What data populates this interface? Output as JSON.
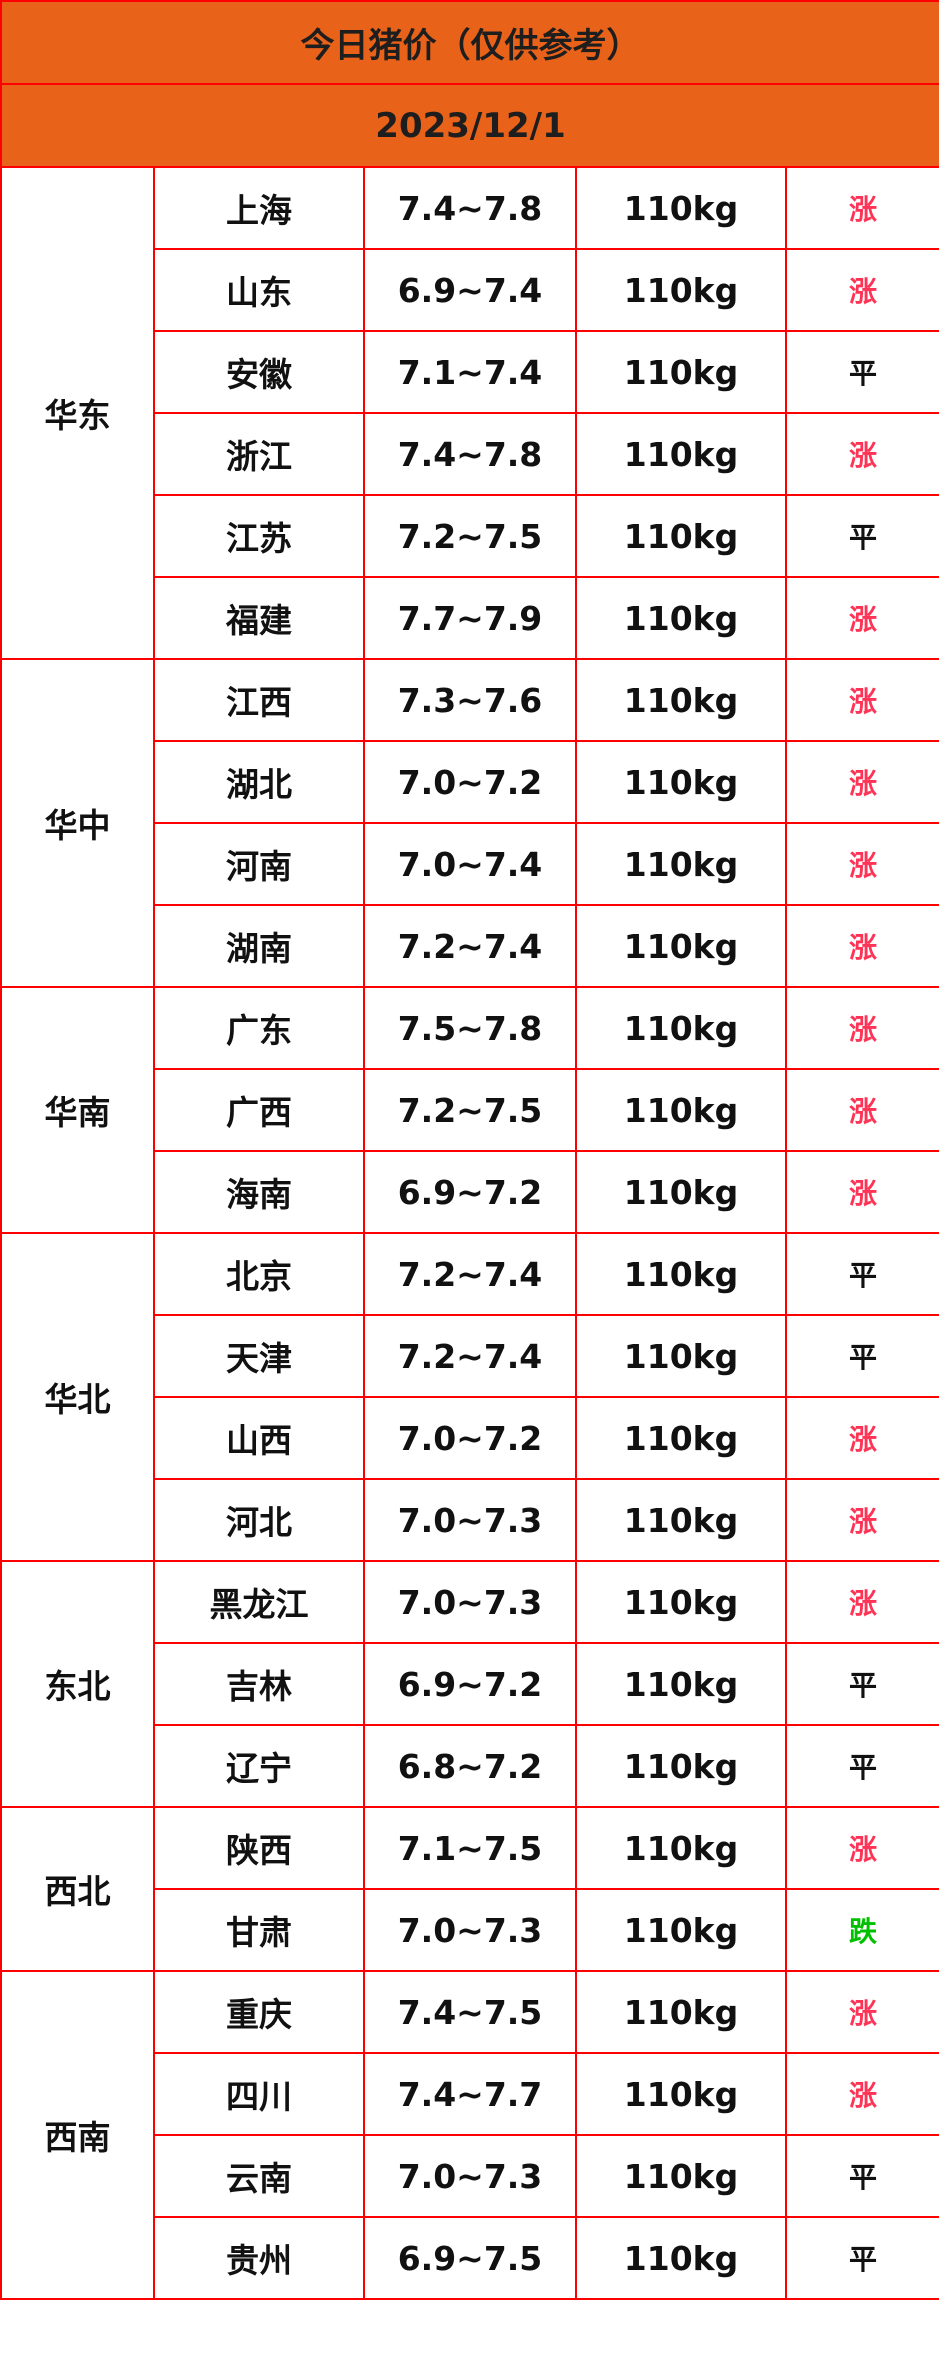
{
  "title": "今日猪价（仅供参考）",
  "date": "2023/12/1",
  "colors": {
    "header_bg": "#e9621a",
    "border": "#ff0000",
    "up": "#ff3355",
    "flat": "#111111",
    "down": "#00c000"
  },
  "regions": [
    {
      "name": "华东",
      "rows": [
        {
          "province": "上海",
          "price": "7.4~7.8",
          "weight": "110kg",
          "trend": "涨"
        },
        {
          "province": "山东",
          "price": "6.9~7.4",
          "weight": "110kg",
          "trend": "涨"
        },
        {
          "province": "安徽",
          "price": "7.1~7.4",
          "weight": "110kg",
          "trend": "平"
        },
        {
          "province": "浙江",
          "price": "7.4~7.8",
          "weight": "110kg",
          "trend": "涨"
        },
        {
          "province": "江苏",
          "price": "7.2~7.5",
          "weight": "110kg",
          "trend": "平"
        },
        {
          "province": "福建",
          "price": "7.7~7.9",
          "weight": "110kg",
          "trend": "涨"
        }
      ]
    },
    {
      "name": "华中",
      "rows": [
        {
          "province": "江西",
          "price": "7.3~7.6",
          "weight": "110kg",
          "trend": "涨"
        },
        {
          "province": "湖北",
          "price": "7.0~7.2",
          "weight": "110kg",
          "trend": "涨"
        },
        {
          "province": "河南",
          "price": "7.0~7.4",
          "weight": "110kg",
          "trend": "涨"
        },
        {
          "province": "湖南",
          "price": "7.2~7.4",
          "weight": "110kg",
          "trend": "涨"
        }
      ]
    },
    {
      "name": "华南",
      "rows": [
        {
          "province": "广东",
          "price": "7.5~7.8",
          "weight": "110kg",
          "trend": "涨"
        },
        {
          "province": "广西",
          "price": "7.2~7.5",
          "weight": "110kg",
          "trend": "涨"
        },
        {
          "province": "海南",
          "price": "6.9~7.2",
          "weight": "110kg",
          "trend": "涨"
        }
      ]
    },
    {
      "name": "华北",
      "rows": [
        {
          "province": "北京",
          "price": "7.2~7.4",
          "weight": "110kg",
          "trend": "平"
        },
        {
          "province": "天津",
          "price": "7.2~7.4",
          "weight": "110kg",
          "trend": "平"
        },
        {
          "province": "山西",
          "price": "7.0~7.2",
          "weight": "110kg",
          "trend": "涨"
        },
        {
          "province": "河北",
          "price": "7.0~7.3",
          "weight": "110kg",
          "trend": "涨"
        }
      ]
    },
    {
      "name": "东北",
      "rows": [
        {
          "province": "黑龙江",
          "price": "7.0~7.3",
          "weight": "110kg",
          "trend": "涨"
        },
        {
          "province": "吉林",
          "price": "6.9~7.2",
          "weight": "110kg",
          "trend": "平"
        },
        {
          "province": "辽宁",
          "price": "6.8~7.2",
          "weight": "110kg",
          "trend": "平"
        }
      ]
    },
    {
      "name": "西北",
      "rows": [
        {
          "province": "陕西",
          "price": "7.1~7.5",
          "weight": "110kg",
          "trend": "涨"
        },
        {
          "province": "甘肃",
          "price": "7.0~7.3",
          "weight": "110kg",
          "trend": "跌"
        }
      ]
    },
    {
      "name": "西南",
      "rows": [
        {
          "province": "重庆",
          "price": "7.4~7.5",
          "weight": "110kg",
          "trend": "涨"
        },
        {
          "province": "四川",
          "price": "7.4~7.7",
          "weight": "110kg",
          "trend": "涨"
        },
        {
          "province": "云南",
          "price": "7.0~7.3",
          "weight": "110kg",
          "trend": "平"
        },
        {
          "province": "贵州",
          "price": "6.9~7.5",
          "weight": "110kg",
          "trend": "平"
        }
      ]
    }
  ]
}
